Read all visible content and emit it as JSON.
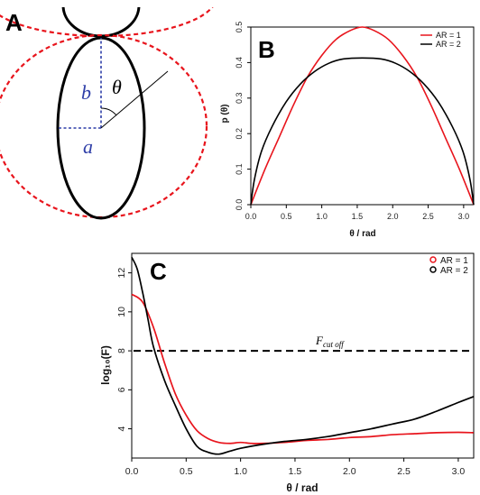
{
  "colors": {
    "ar1": "#e8141c",
    "ar2": "#000000",
    "dim": "#2f3fa8"
  },
  "panel_a": {
    "letter": "A",
    "label_b": "b",
    "label_theta": "θ",
    "label_a": "a"
  },
  "chart_data": [
    {
      "panel": "B",
      "type": "line",
      "xlabel": "θ / rad",
      "ylabel": "p (θ)",
      "xlim": [
        0,
        3.14159
      ],
      "ylim": [
        0,
        0.5
      ],
      "xticks": [
        "0.0",
        "0.5",
        "1.0",
        "1.5",
        "2.0",
        "2.5",
        "3.0"
      ],
      "yticks": [
        "0.0",
        "0.1",
        "0.2",
        "0.3",
        "0.4",
        "0.5"
      ],
      "legend_position": "top-right",
      "series": [
        {
          "name": "AR = 1",
          "color": "#e8141c",
          "x": [
            0,
            0.2,
            0.4,
            0.6,
            0.8,
            1.0,
            1.2,
            1.4,
            1.571,
            1.74,
            1.94,
            2.14,
            2.34,
            2.54,
            2.74,
            2.94,
            3.1416
          ],
          "y": [
            0,
            0.1,
            0.19,
            0.28,
            0.36,
            0.42,
            0.465,
            0.49,
            0.5,
            0.49,
            0.465,
            0.42,
            0.36,
            0.28,
            0.19,
            0.1,
            0
          ]
        },
        {
          "name": "AR = 2",
          "color": "#000000",
          "x": [
            0,
            0.05,
            0.15,
            0.3,
            0.5,
            0.7,
            0.9,
            1.1,
            1.3,
            1.571,
            1.84,
            2.04,
            2.24,
            2.44,
            2.64,
            2.84,
            2.99,
            3.09,
            3.1416
          ],
          "y": [
            0,
            0.07,
            0.15,
            0.22,
            0.29,
            0.34,
            0.375,
            0.398,
            0.41,
            0.413,
            0.41,
            0.398,
            0.375,
            0.34,
            0.29,
            0.22,
            0.15,
            0.07,
            0
          ]
        }
      ]
    },
    {
      "panel": "C",
      "type": "line",
      "xlabel": "θ / rad",
      "ylabel": "log₁₀(F)",
      "xlim": [
        0,
        3.14159
      ],
      "ylim": [
        2.5,
        13
      ],
      "xticks": [
        "0.0",
        "0.5",
        "1.0",
        "1.5",
        "2.0",
        "2.5",
        "3.0"
      ],
      "yticks": [
        "4",
        "6",
        "8",
        "10",
        "12"
      ],
      "legend_position": "top-right",
      "cutoff": {
        "value": 8,
        "label": "F",
        "label_sub": "cut off"
      },
      "series": [
        {
          "name": "AR = 1",
          "color": "#e8141c",
          "marker": "open-circle",
          "x": [
            0,
            0.1,
            0.2,
            0.3,
            0.4,
            0.5,
            0.6,
            0.7,
            0.8,
            0.9,
            1.0,
            1.1,
            1.2,
            1.4,
            1.6,
            1.8,
            2.0,
            2.2,
            2.4,
            2.6,
            2.8,
            3.0,
            3.14
          ],
          "y": [
            10.9,
            10.5,
            9.2,
            7.4,
            5.8,
            4.7,
            3.9,
            3.5,
            3.3,
            3.25,
            3.3,
            3.25,
            3.25,
            3.3,
            3.4,
            3.45,
            3.55,
            3.6,
            3.7,
            3.75,
            3.8,
            3.82,
            3.8
          ]
        },
        {
          "name": "AR = 2",
          "color": "#000000",
          "marker": "open-circle",
          "x": [
            0,
            0.05,
            0.1,
            0.15,
            0.2,
            0.3,
            0.4,
            0.5,
            0.6,
            0.7,
            0.8,
            0.9,
            1.0,
            1.2,
            1.4,
            1.6,
            1.8,
            2.0,
            2.2,
            2.4,
            2.6,
            2.8,
            3.0,
            3.14
          ],
          "y": [
            12.8,
            12.2,
            11.0,
            9.6,
            8.2,
            6.5,
            5.2,
            4.0,
            3.1,
            2.8,
            2.7,
            2.85,
            3.0,
            3.2,
            3.35,
            3.45,
            3.6,
            3.8,
            4.0,
            4.25,
            4.5,
            4.9,
            5.35,
            5.65
          ]
        }
      ]
    }
  ]
}
